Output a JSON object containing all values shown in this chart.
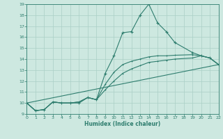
{
  "title": "",
  "xlabel": "Humidex (Indice chaleur)",
  "xlim": [
    0,
    22
  ],
  "ylim": [
    9,
    19
  ],
  "xticks": [
    0,
    1,
    2,
    3,
    4,
    5,
    6,
    7,
    8,
    9,
    10,
    11,
    12,
    13,
    14,
    15,
    16,
    17,
    18,
    19,
    20,
    21,
    22
  ],
  "yticks": [
    9,
    10,
    11,
    12,
    13,
    14,
    15,
    16,
    17,
    18,
    19
  ],
  "background_color": "#cde8e0",
  "line_color": "#2e7d6e",
  "grid_color": "#aacfc6",
  "line1_x": [
    0,
    1,
    2,
    3,
    4,
    5,
    6,
    7,
    8,
    9,
    10,
    11,
    12,
    13,
    14,
    15,
    16,
    17,
    19,
    20,
    21,
    22
  ],
  "line1_y": [
    10.0,
    9.3,
    9.4,
    10.1,
    10.0,
    10.0,
    10.0,
    10.5,
    10.3,
    12.7,
    14.3,
    16.4,
    16.5,
    18.0,
    19.0,
    17.3,
    16.5,
    15.5,
    14.6,
    14.3,
    14.1,
    13.5
  ],
  "line2_x": [
    0,
    1,
    2,
    3,
    4,
    5,
    6,
    7,
    8,
    9,
    10,
    11,
    12,
    13,
    14,
    15,
    16,
    17,
    19,
    20,
    21,
    22
  ],
  "line2_y": [
    10.0,
    9.3,
    9.4,
    10.1,
    10.0,
    10.0,
    10.1,
    10.5,
    10.3,
    11.7,
    12.8,
    13.5,
    13.8,
    14.0,
    14.2,
    14.3,
    14.3,
    14.35,
    14.4,
    14.3,
    14.1,
    13.5
  ],
  "line3_x": [
    0,
    1,
    2,
    3,
    4,
    5,
    6,
    7,
    8,
    9,
    10,
    11,
    12,
    13,
    14,
    15,
    16,
    17,
    19,
    20,
    21,
    22
  ],
  "line3_y": [
    10.0,
    9.3,
    9.4,
    10.1,
    10.0,
    10.0,
    10.1,
    10.5,
    10.3,
    11.2,
    12.0,
    12.7,
    13.1,
    13.4,
    13.7,
    13.8,
    13.9,
    14.0,
    14.1,
    14.3,
    14.1,
    13.5
  ],
  "line4_x": [
    0,
    22
  ],
  "line4_y": [
    10.0,
    13.5
  ]
}
